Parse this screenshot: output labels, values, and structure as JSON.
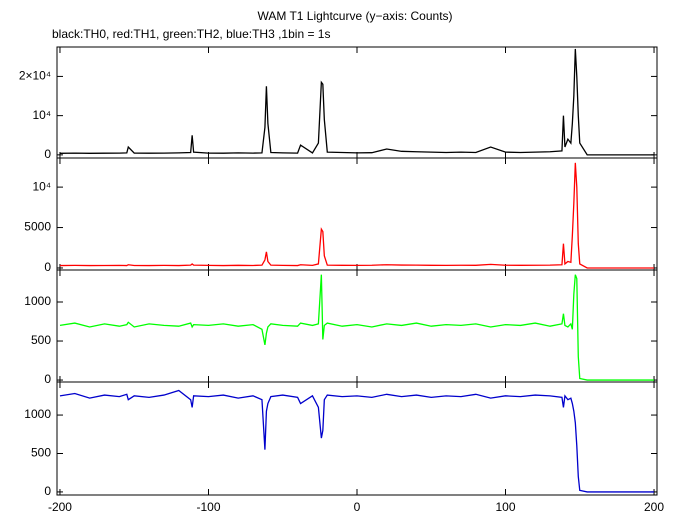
{
  "title": "WAM T1 Lightcurve (y−axis: Counts)",
  "subtitle": "black:TH0, red:TH1, green:TH2, blue:TH3 ,1bin = 1s",
  "chart_data": [
    {
      "type": "line",
      "color": "#000000",
      "xlim": [
        -202,
        202
      ],
      "x": [
        -200,
        -190,
        -180,
        -170,
        -160,
        -155,
        -154,
        -150,
        -140,
        -130,
        -120,
        -112,
        -111,
        -110,
        -100,
        -90,
        -80,
        -70,
        -64,
        -62,
        -61,
        -60,
        -58,
        -50,
        -40,
        -38,
        -30,
        -26,
        -24,
        -23,
        -22,
        -20,
        -10,
        0,
        10,
        20,
        30,
        40,
        50,
        60,
        70,
        80,
        90,
        100,
        110,
        120,
        130,
        138,
        139,
        140,
        142,
        144,
        145,
        146,
        147,
        148,
        149,
        150,
        155,
        160,
        180,
        200
      ],
      "values": [
        400,
        450,
        400,
        420,
        450,
        500,
        2000,
        450,
        420,
        450,
        500,
        600,
        5000,
        700,
        450,
        420,
        500,
        450,
        500,
        7000,
        17500,
        8000,
        600,
        500,
        450,
        2500,
        500,
        3000,
        18500,
        18000,
        9000,
        700,
        600,
        500,
        550,
        1500,
        900,
        800,
        700,
        600,
        700,
        600,
        2000,
        700,
        600,
        700,
        800,
        1000,
        10000,
        2000,
        4000,
        3000,
        8000,
        15000,
        27000,
        20000,
        10000,
        3000,
        0,
        0,
        0,
        0
      ],
      "ylim": [
        -800,
        27500
      ],
      "yticks": [
        0,
        {
          "value": 10000,
          "label": "10⁴"
        },
        {
          "value": 20000,
          "label": "2×10⁴"
        }
      ]
    },
    {
      "type": "line",
      "color": "#ff0000",
      "xlim": [
        -202,
        202
      ],
      "x": [
        -200,
        -190,
        -180,
        -170,
        -160,
        -155,
        -154,
        -150,
        -140,
        -130,
        -120,
        -112,
        -111,
        -110,
        -100,
        -90,
        -80,
        -70,
        -64,
        -62,
        -61,
        -60,
        -58,
        -50,
        -40,
        -38,
        -30,
        -26,
        -24,
        -23,
        -22,
        -20,
        -10,
        0,
        10,
        20,
        30,
        40,
        50,
        60,
        70,
        80,
        90,
        100,
        110,
        120,
        130,
        138,
        139,
        140,
        142,
        144,
        145,
        146,
        147,
        148,
        149,
        150,
        155,
        160,
        180,
        200
      ],
      "values": [
        300,
        320,
        300,
        310,
        320,
        300,
        400,
        310,
        300,
        320,
        300,
        350,
        500,
        350,
        320,
        300,
        330,
        310,
        350,
        1000,
        2000,
        800,
        350,
        320,
        300,
        400,
        320,
        500,
        4800,
        4500,
        1500,
        350,
        330,
        320,
        340,
        400,
        360,
        350,
        330,
        320,
        340,
        330,
        450,
        340,
        330,
        340,
        350,
        400,
        3000,
        500,
        800,
        700,
        4000,
        8000,
        13000,
        10000,
        3000,
        500,
        0,
        0,
        0,
        0
      ],
      "ylim": [
        -250,
        13600
      ],
      "yticks": [
        0,
        5000,
        {
          "value": 10000,
          "label": "10⁴"
        }
      ]
    },
    {
      "type": "line",
      "color": "#00ff00",
      "xlim": [
        -202,
        202
      ],
      "x": [
        -200,
        -190,
        -180,
        -170,
        -160,
        -155,
        -154,
        -150,
        -140,
        -130,
        -120,
        -112,
        -111,
        -110,
        -100,
        -90,
        -80,
        -70,
        -64,
        -62,
        -61,
        -60,
        -58,
        -50,
        -40,
        -38,
        -30,
        -26,
        -24,
        -23,
        -22,
        -20,
        -10,
        0,
        10,
        20,
        30,
        40,
        50,
        60,
        70,
        80,
        90,
        100,
        110,
        120,
        130,
        138,
        139,
        140,
        142,
        144,
        145,
        146,
        147,
        148,
        149,
        150,
        155,
        160,
        180,
        200
      ],
      "values": [
        700,
        730,
        680,
        720,
        690,
        710,
        740,
        680,
        720,
        700,
        690,
        730,
        680,
        710,
        700,
        720,
        690,
        710,
        650,
        450,
        600,
        680,
        720,
        700,
        690,
        730,
        700,
        720,
        1350,
        520,
        700,
        730,
        690,
        710,
        680,
        720,
        700,
        730,
        690,
        710,
        700,
        720,
        680,
        710,
        700,
        730,
        690,
        720,
        850,
        700,
        680,
        720,
        650,
        1100,
        1350,
        1300,
        300,
        20,
        0,
        0,
        0,
        0
      ],
      "ylim": [
        -25,
        1410
      ],
      "yticks": [
        0,
        500,
        1000
      ]
    },
    {
      "type": "line",
      "color": "#0000cc",
      "xlim": [
        -202,
        202
      ],
      "x": [
        -200,
        -190,
        -180,
        -170,
        -160,
        -155,
        -154,
        -150,
        -140,
        -130,
        -120,
        -112,
        -111,
        -110,
        -100,
        -90,
        -80,
        -70,
        -64,
        -62,
        -61,
        -60,
        -58,
        -50,
        -40,
        -38,
        -30,
        -26,
        -24,
        -23,
        -22,
        -20,
        -10,
        0,
        10,
        20,
        30,
        40,
        50,
        60,
        70,
        80,
        90,
        100,
        110,
        120,
        130,
        138,
        139,
        140,
        142,
        144,
        145,
        146,
        147,
        148,
        149,
        150,
        155,
        160,
        180,
        200
      ],
      "values": [
        1250,
        1280,
        1220,
        1260,
        1240,
        1270,
        1200,
        1250,
        1230,
        1260,
        1320,
        1200,
        1100,
        1250,
        1240,
        1260,
        1220,
        1250,
        1200,
        550,
        1050,
        1150,
        1240,
        1260,
        1230,
        1150,
        1250,
        1100,
        700,
        800,
        1200,
        1260,
        1240,
        1250,
        1230,
        1270,
        1240,
        1260,
        1230,
        1250,
        1240,
        1270,
        1220,
        1250,
        1240,
        1260,
        1250,
        1230,
        1100,
        1250,
        1200,
        1220,
        1150,
        1050,
        900,
        600,
        200,
        20,
        0,
        0,
        0,
        0
      ],
      "ylim": [
        -40,
        1430
      ],
      "yticks": [
        0,
        500,
        1000
      ],
      "xticks": [
        -200,
        -100,
        0,
        100,
        200
      ]
    }
  ]
}
